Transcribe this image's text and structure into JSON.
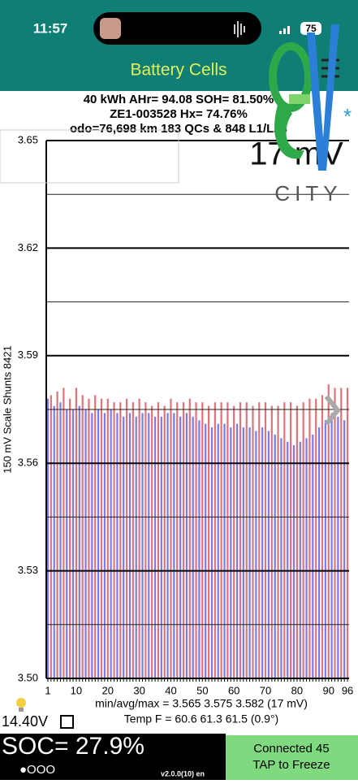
{
  "status_bar": {
    "time": "11:57",
    "battery": "75"
  },
  "header": {
    "title": "Battery Cells"
  },
  "info": {
    "line1": "40 kWh  AHr= 94.08  SOH= 81.50%",
    "line2": "ZE1-003528  Hx= 74.76%",
    "line3": "odo=76,698 km 183 QCs & 848 L1/L2s"
  },
  "overlay": {
    "spread": "17 mV",
    "logo_text": "CITY"
  },
  "chart_data": {
    "type": "bar",
    "y_label": "150 mV Scale   Shunts 8421",
    "ylim": [
      3.5,
      3.65
    ],
    "yticks": [
      {
        "value": 3.5,
        "label": "3.50"
      },
      3.53,
      3.56,
      3.59,
      3.62,
      3.65
    ],
    "minor_gridlines": [
      3.515,
      3.545,
      3.575,
      3.605,
      3.635
    ],
    "grid": true,
    "colors": [
      "#7a7ae8",
      "#e0727c"
    ],
    "categories": [
      "1",
      null,
      null,
      null,
      null,
      null,
      null,
      null,
      null,
      "10",
      null,
      null,
      null,
      null,
      null,
      null,
      null,
      null,
      null,
      "20",
      null,
      null,
      null,
      null,
      null,
      null,
      null,
      null,
      null,
      "30",
      null,
      null,
      null,
      null,
      null,
      null,
      null,
      null,
      null,
      "40",
      null,
      null,
      null,
      null,
      null,
      null,
      null,
      null,
      null,
      "50",
      null,
      null,
      null,
      null,
      null,
      null,
      null,
      null,
      null,
      "60",
      null,
      null,
      null,
      null,
      null,
      null,
      null,
      null,
      null,
      "70",
      null,
      null,
      null,
      null,
      null,
      null,
      null,
      null,
      null,
      "80",
      null,
      null,
      null,
      null,
      null,
      null,
      null,
      null,
      null,
      "90",
      null,
      null,
      null,
      null,
      null,
      "96"
    ],
    "values": [
      3.578,
      3.579,
      3.576,
      3.58,
      3.577,
      3.581,
      3.575,
      3.578,
      3.575,
      3.581,
      3.576,
      3.579,
      3.575,
      3.578,
      3.574,
      3.579,
      3.575,
      3.578,
      3.574,
      3.578,
      3.575,
      3.577,
      3.574,
      3.577,
      3.573,
      3.578,
      3.574,
      3.577,
      3.573,
      3.578,
      3.574,
      3.577,
      3.574,
      3.576,
      3.573,
      3.577,
      3.573,
      3.576,
      3.574,
      3.578,
      3.574,
      3.577,
      3.573,
      3.577,
      3.574,
      3.578,
      3.573,
      3.577,
      3.572,
      3.577,
      3.571,
      3.576,
      3.57,
      3.577,
      3.571,
      3.577,
      3.571,
      3.577,
      3.57,
      3.576,
      3.571,
      3.577,
      3.57,
      3.577,
      3.57,
      3.576,
      3.569,
      3.577,
      3.57,
      3.577,
      3.569,
      3.576,
      3.568,
      3.576,
      3.567,
      3.577,
      3.566,
      3.577,
      3.565,
      3.576,
      3.566,
      3.577,
      3.567,
      3.578,
      3.568,
      3.578,
      3.57,
      3.579,
      3.572,
      3.582,
      3.574,
      3.581,
      3.573,
      3.581,
      3.572,
      3.581
    ]
  },
  "stats": {
    "minavgmax": "min/avg/max = 3.565 3.575 3.582  (17 mV)",
    "temp": "Temp F = 60.6  61.3  61.5  (0.9°)",
    "voltage": "14.40V"
  },
  "footer": {
    "soc": "SOC= 27.9%",
    "pager": "●OOO",
    "version": "v2.0.0(10) en",
    "button_line1": "Connected 45",
    "button_line2": "TAP to Freeze"
  }
}
